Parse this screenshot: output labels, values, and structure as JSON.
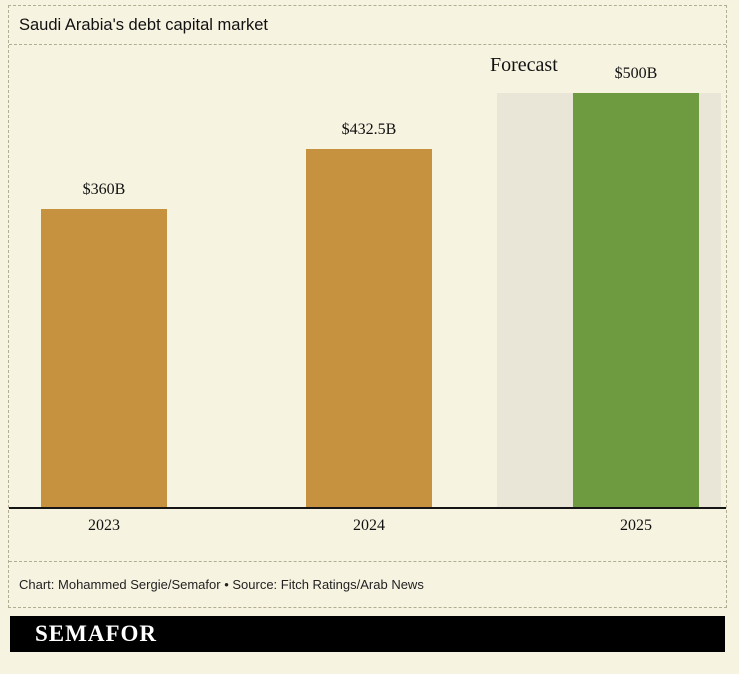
{
  "page": {
    "caption": "Chart: Mohammed Sergie/Semafor • Source: Fitch Ratings/Arab News",
    "logo": "SEMAFOR"
  },
  "chart_data": {
    "type": "bar",
    "title": "Saudi Arabia's debt capital market",
    "categories": [
      "2023",
      "2024",
      "2025"
    ],
    "values": [
      360,
      432.5,
      500
    ],
    "value_labels": [
      "$360B",
      "$432.5B",
      "$500B"
    ],
    "forecast_label": "Forecast",
    "forecast_index": 2,
    "ylim": [
      0,
      500
    ],
    "grid": false,
    "legend": false,
    "colors": {
      "bar": "#c6923f",
      "forecast_bar": "#6f9b40",
      "forecast_band": "#e9e6d7",
      "background": "#f7f3e1",
      "axis": "#151515"
    }
  }
}
